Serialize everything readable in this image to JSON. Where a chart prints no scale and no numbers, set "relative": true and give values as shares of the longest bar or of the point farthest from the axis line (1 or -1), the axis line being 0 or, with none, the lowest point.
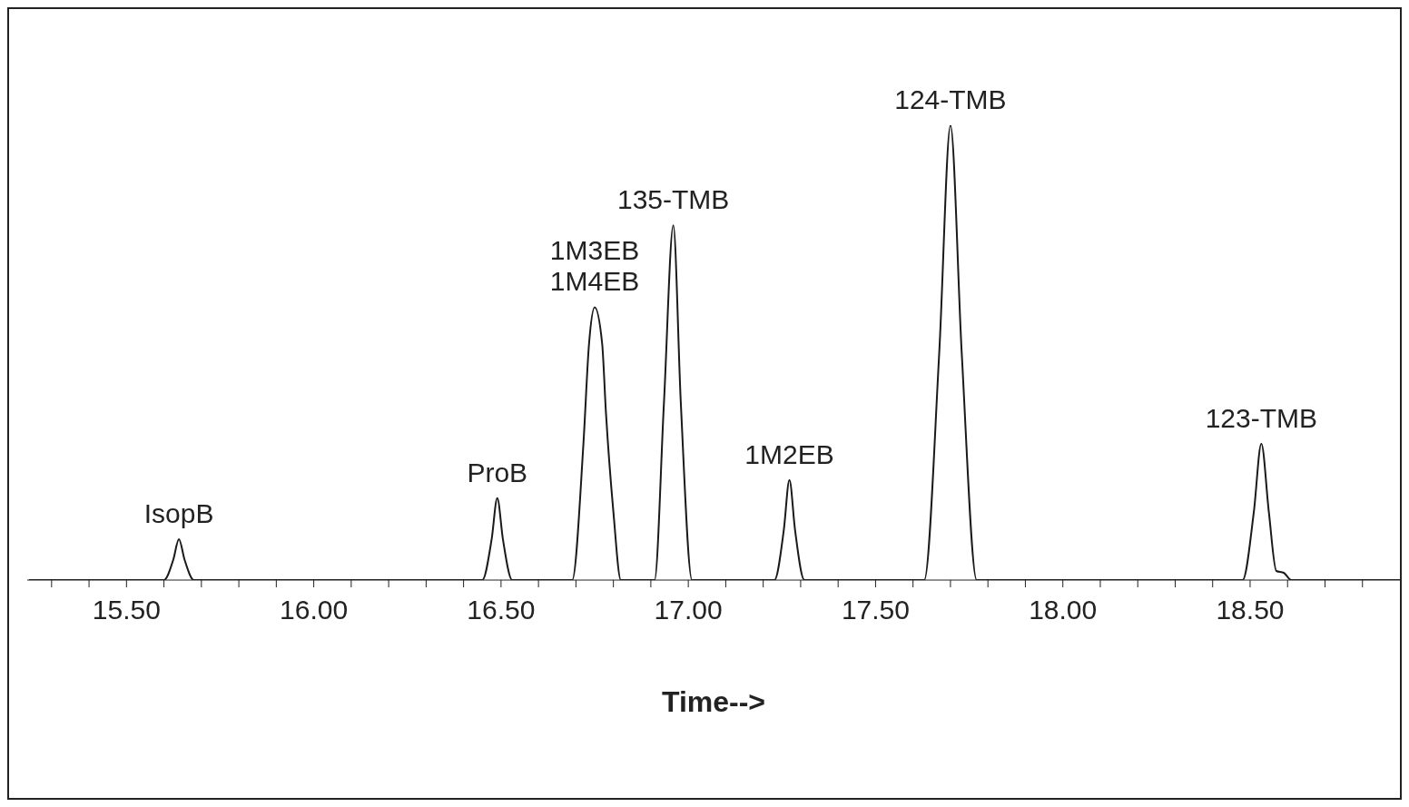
{
  "chart_data": {
    "type": "line",
    "relative": true,
    "xlabel": "Time-->",
    "xlim": [
      15.235,
      18.9
    ],
    "xticks": [
      {
        "value": 15.3,
        "label": null
      },
      {
        "value": 15.4,
        "label": null
      },
      {
        "value": 15.5,
        "label": "15.50"
      },
      {
        "value": 15.6,
        "label": null
      },
      {
        "value": 15.7,
        "label": null
      },
      {
        "value": 15.8,
        "label": null
      },
      {
        "value": 15.9,
        "label": null
      },
      {
        "value": 16.0,
        "label": "16.00"
      },
      {
        "value": 16.1,
        "label": null
      },
      {
        "value": 16.2,
        "label": null
      },
      {
        "value": 16.3,
        "label": null
      },
      {
        "value": 16.4,
        "label": null
      },
      {
        "value": 16.5,
        "label": "16.50"
      },
      {
        "value": 16.6,
        "label": null
      },
      {
        "value": 16.7,
        "label": null
      },
      {
        "value": 16.8,
        "label": null
      },
      {
        "value": 16.9,
        "label": null
      },
      {
        "value": 17.0,
        "label": "17.00"
      },
      {
        "value": 17.1,
        "label": null
      },
      {
        "value": 17.2,
        "label": null
      },
      {
        "value": 17.3,
        "label": null
      },
      {
        "value": 17.4,
        "label": null
      },
      {
        "value": 17.5,
        "label": "17.50"
      },
      {
        "value": 17.6,
        "label": null
      },
      {
        "value": 17.7,
        "label": null
      },
      {
        "value": 17.8,
        "label": null
      },
      {
        "value": 17.9,
        "label": null
      },
      {
        "value": 18.0,
        "label": "18.00"
      },
      {
        "value": 18.1,
        "label": null
      },
      {
        "value": 18.2,
        "label": null
      },
      {
        "value": 18.3,
        "label": null
      },
      {
        "value": 18.4,
        "label": null
      },
      {
        "value": 18.5,
        "label": "18.50"
      },
      {
        "value": 18.6,
        "label": null
      },
      {
        "value": 18.7,
        "label": null
      },
      {
        "value": 18.8,
        "label": null
      }
    ],
    "grid": false,
    "marker": "none",
    "line_style": "solid",
    "series": [
      {
        "color": "#1a1a1a",
        "x": [
          15.24,
          15.6,
          15.625,
          15.64,
          15.655,
          15.68,
          16.45,
          16.475,
          16.49,
          16.505,
          16.53,
          16.69,
          16.72,
          16.735,
          16.75,
          16.77,
          16.78,
          16.8,
          16.82,
          16.86,
          16.91,
          16.935,
          16.96,
          16.98,
          17.01,
          17.23,
          17.255,
          17.27,
          17.285,
          17.31,
          17.63,
          17.67,
          17.7,
          17.73,
          17.77,
          18.48,
          18.51,
          18.53,
          18.55,
          18.57,
          18.59,
          18.61,
          18.9
        ],
        "values": [
          0,
          0,
          0.045,
          0.09,
          0.045,
          0,
          0,
          0.09,
          0.18,
          0.09,
          0,
          0,
          0.3,
          0.52,
          0.6,
          0.52,
          0.37,
          0.15,
          0,
          0,
          0,
          0.39,
          0.78,
          0.39,
          0,
          0,
          0.11,
          0.22,
          0.11,
          0,
          0,
          0.5,
          1,
          0.5,
          0,
          0,
          0.15,
          0.3,
          0.15,
          0.02,
          0.016,
          0,
          0
        ]
      }
    ],
    "annotations": [
      {
        "text": "IsopB",
        "x": 15.64,
        "y": 0.09
      },
      {
        "text": "ProB",
        "x": 16.49,
        "y": 0.18
      },
      {
        "text": "1M4EB",
        "x": 16.75,
        "y": 0.6
      },
      {
        "text": "1M3EB",
        "x": 16.75,
        "y": 0.6
      },
      {
        "text": "135-TMB",
        "x": 16.96,
        "y": 0.78
      },
      {
        "text": "1M2EB",
        "x": 17.27,
        "y": 0.22
      },
      {
        "text": "124-TMB",
        "x": 17.7,
        "y": 1
      },
      {
        "text": "123-TMB",
        "x": 18.53,
        "y": 0.3
      }
    ]
  }
}
